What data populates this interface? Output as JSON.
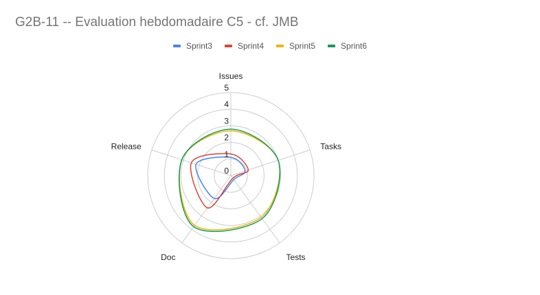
{
  "title": "G2B-11 -- Evaluation hebdomadaire C5 - cf. JMB",
  "chart_data": {
    "type": "radar",
    "categories": [
      "Issues",
      "Tasks",
      "Tests",
      "Doc",
      "Release"
    ],
    "rlim": [
      0,
      5
    ],
    "ticks": [
      "0",
      "1",
      "2",
      "3",
      "4",
      "5"
    ],
    "grid": true,
    "legend_position": "top",
    "series": [
      {
        "name": "Sprint3",
        "color": "#4285f4",
        "values": [
          1.1,
          0.9,
          0.3,
          1.7,
          2.2
        ]
      },
      {
        "name": "Sprint4",
        "color": "#db4437",
        "values": [
          1.3,
          1.1,
          0.2,
          2.4,
          2.5
        ]
      },
      {
        "name": "Sprint5",
        "color": "#f4b400",
        "values": [
          2.7,
          3.0,
          3.1,
          3.7,
          3.1
        ]
      },
      {
        "name": "Sprint6",
        "color": "#0f9d58",
        "values": [
          2.8,
          3.0,
          3.2,
          3.8,
          3.1
        ]
      }
    ]
  }
}
